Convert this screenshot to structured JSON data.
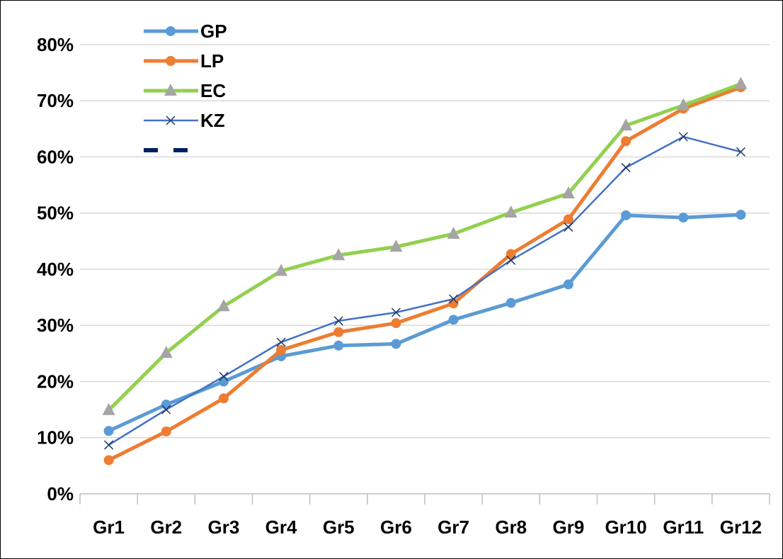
{
  "chart_data": {
    "type": "line",
    "categories": [
      "Gr1",
      "Gr2",
      "Gr3",
      "Gr4",
      "Gr5",
      "Gr6",
      "Gr7",
      "Gr8",
      "Gr9",
      "Gr10",
      "Gr11",
      "Gr12"
    ],
    "series": [
      {
        "name": "GP",
        "color": "#5b9bd5",
        "marker": "circle",
        "marker_color": "#5b9bd5",
        "line_width": 5,
        "values": [
          11.2,
          15.9,
          20.0,
          24.5,
          26.4,
          26.7,
          31.0,
          34.0,
          37.3,
          49.6,
          49.2,
          49.7
        ]
      },
      {
        "name": "LP",
        "color": "#ed7d31",
        "marker": "circle",
        "marker_color": "#ed7d31",
        "line_width": 5,
        "values": [
          6.0,
          11.1,
          17.0,
          25.6,
          28.8,
          30.4,
          33.9,
          42.7,
          48.9,
          62.8,
          68.6,
          72.4
        ]
      },
      {
        "name": "EC",
        "color": "#92d050",
        "marker": "triangle",
        "marker_color": "#a5a5a5",
        "line_width": 5,
        "values": [
          14.9,
          25.1,
          33.4,
          39.7,
          42.5,
          44.0,
          46.3,
          50.1,
          53.5,
          65.6,
          69.2,
          73.0
        ]
      },
      {
        "name": "KZ",
        "color": "#4472c4",
        "marker": "x",
        "marker_color": "#1f3864",
        "line_width": 2.5,
        "values": [
          8.7,
          15.0,
          20.9,
          27.0,
          30.8,
          32.3,
          34.7,
          41.6,
          47.5,
          58.1,
          63.6,
          60.9
        ]
      }
    ],
    "ylim": [
      0,
      80
    ],
    "yticks": [
      {
        "value": 0,
        "label": "0%"
      },
      {
        "value": 10,
        "label": "10%"
      },
      {
        "value": 20,
        "label": "20%"
      },
      {
        "value": 30,
        "label": "30%"
      },
      {
        "value": 40,
        "label": "40%"
      },
      {
        "value": 50,
        "label": "50%"
      },
      {
        "value": 60,
        "label": "60%"
      },
      {
        "value": 70,
        "label": "70%"
      },
      {
        "value": 80,
        "label": "80%"
      }
    ],
    "grid": true,
    "legend": "top-left"
  }
}
